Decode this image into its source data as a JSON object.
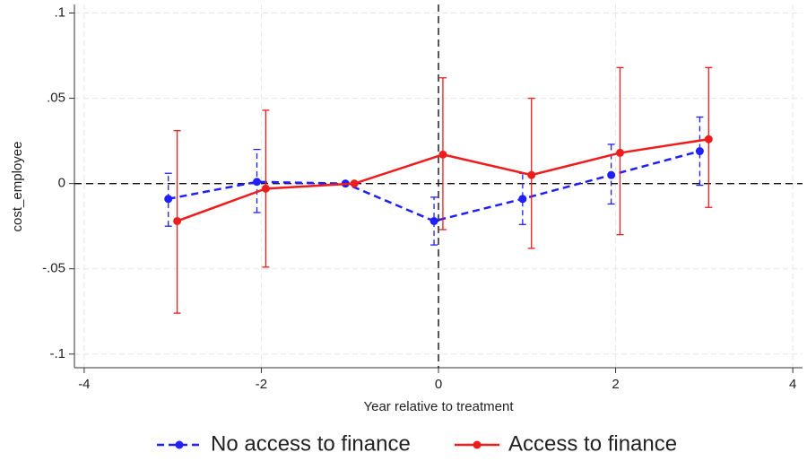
{
  "chart_data": {
    "type": "line",
    "x_label": "Year relative to treatment",
    "y_label": "cost_employee",
    "xlim": [
      -4.11,
      4.11
    ],
    "ylim": [
      -0.108,
      0.105
    ],
    "xticks": [
      -4,
      -2,
      0,
      2,
      4
    ],
    "yticks": [
      {
        "value": -0.1,
        "label": "-.1"
      },
      {
        "value": -0.05,
        "label": "-.05"
      },
      0,
      {
        "value": 0.05,
        "label": ".05"
      },
      {
        "value": 0.1,
        "label": ".1"
      }
    ],
    "grid": true,
    "xline": 0,
    "yline": 0,
    "legend": "bottom",
    "series": [
      {
        "name": "No access to finance",
        "color": "#1f1fff",
        "dashed": true,
        "x": [
          -3.05,
          -2.05,
          -1.05,
          -0.05,
          0.95,
          1.95,
          2.95
        ],
        "values": [
          -0.009,
          0.001,
          0,
          -0.022,
          -0.009,
          0.005,
          0.019
        ],
        "lower": [
          -0.025,
          -0.017,
          0,
          -0.036,
          -0.024,
          -0.012,
          -0.001
        ],
        "upper": [
          0.006,
          0.02,
          0,
          -0.008,
          0.006,
          0.023,
          0.039
        ]
      },
      {
        "name": "Access to finance",
        "color": "#ee1c1c",
        "dashed": false,
        "x": [
          -2.95,
          -1.95,
          -0.95,
          0.05,
          1.05,
          2.05,
          3.05
        ],
        "values": [
          -0.022,
          -0.003,
          0,
          0.017,
          0.005,
          0.018,
          0.026
        ],
        "lower": [
          -0.076,
          -0.049,
          0,
          -0.027,
          -0.038,
          -0.03,
          -0.014
        ],
        "upper": [
          0.031,
          0.043,
          0,
          0.062,
          0.05,
          0.068,
          0.068
        ]
      }
    ]
  }
}
